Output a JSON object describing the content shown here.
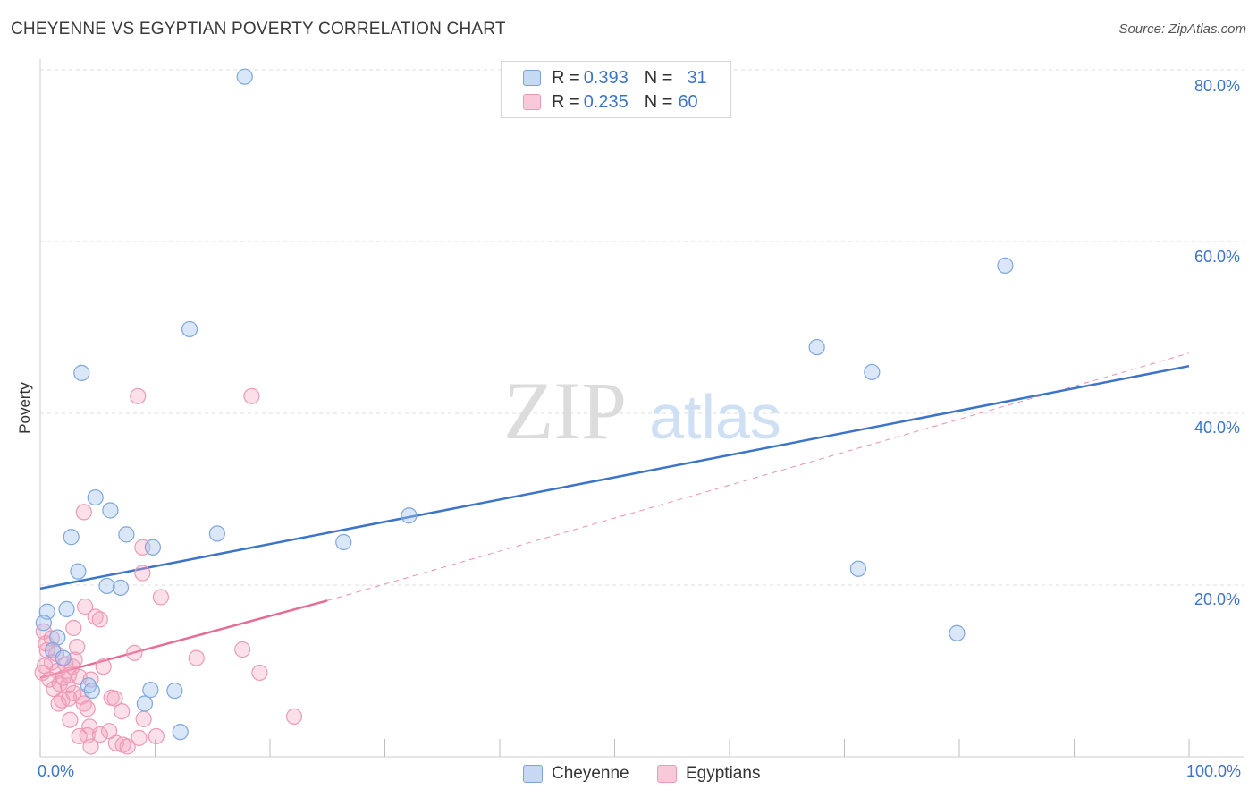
{
  "title": "CHEYENNE VS EGYPTIAN POVERTY CORRELATION CHART",
  "source": "Source: ZipAtlas.com",
  "watermark": {
    "zip": "ZIP",
    "atlas": "atlas"
  },
  "legend": {
    "r_label": "R =",
    "n_label": "N =",
    "rows": [
      {
        "r": "0.393",
        "n": "31"
      },
      {
        "r": "0.235",
        "n": "60"
      }
    ]
  },
  "chart_data": {
    "type": "scatter",
    "title": "CHEYENNE VS EGYPTIAN POVERTY CORRELATION CHART",
    "xlabel": "",
    "ylabel": "Poverty",
    "xlim": [
      0,
      100
    ],
    "ylim": [
      0,
      80
    ],
    "x_tick_labels": {
      "min": "0.0%",
      "max": "100.0%"
    },
    "y_ticks": [
      20,
      40,
      60,
      80
    ],
    "y_tick_labels": [
      "20.0%",
      "40.0%",
      "60.0%",
      "80.0%"
    ],
    "grid": "horizontal dashed",
    "legend_placement": "bottom-center",
    "colors": {
      "cheyenne": "#3b74c9",
      "egyptians": "#e56d95"
    },
    "series": [
      {
        "name": "Cheyenne",
        "r": 0.393,
        "n": 31,
        "trend": {
          "x0": 0,
          "y0": 19.6,
          "x1": 100,
          "y1": 45.5
        },
        "points": [
          [
            17.8,
            79.2
          ],
          [
            84.0,
            57.2
          ],
          [
            13.0,
            49.8
          ],
          [
            3.6,
            44.7
          ],
          [
            67.6,
            47.7
          ],
          [
            72.4,
            44.8
          ],
          [
            4.8,
            30.2
          ],
          [
            6.1,
            28.7
          ],
          [
            32.1,
            28.1
          ],
          [
            2.7,
            25.6
          ],
          [
            7.5,
            25.9
          ],
          [
            15.4,
            26.0
          ],
          [
            26.4,
            25.0
          ],
          [
            9.8,
            24.4
          ],
          [
            3.3,
            21.6
          ],
          [
            71.2,
            21.9
          ],
          [
            5.8,
            19.9
          ],
          [
            7.0,
            19.7
          ],
          [
            0.6,
            16.9
          ],
          [
            2.3,
            17.2
          ],
          [
            0.3,
            15.6
          ],
          [
            1.5,
            13.9
          ],
          [
            79.8,
            14.4
          ],
          [
            1.1,
            12.4
          ],
          [
            2.0,
            11.5
          ],
          [
            4.2,
            8.3
          ],
          [
            4.5,
            7.7
          ],
          [
            9.6,
            7.8
          ],
          [
            11.7,
            7.7
          ],
          [
            9.1,
            6.2
          ],
          [
            12.2,
            2.9
          ]
        ]
      },
      {
        "name": "Egyptians",
        "r": 0.235,
        "n": 60,
        "trend": {
          "x0": 0,
          "y0": 9.2,
          "x1": 25,
          "y1": 18.2
        },
        "trend_extension": {
          "x0": 25,
          "y0": 18.2,
          "x1": 100,
          "y1": 47.0
        },
        "points": [
          [
            8.5,
            42.0
          ],
          [
            18.4,
            42.0
          ],
          [
            3.8,
            28.5
          ],
          [
            8.9,
            24.4
          ],
          [
            8.9,
            21.4
          ],
          [
            10.5,
            18.6
          ],
          [
            3.9,
            17.5
          ],
          [
            4.8,
            16.3
          ],
          [
            5.2,
            16.0
          ],
          [
            0.3,
            14.6
          ],
          [
            2.9,
            15.0
          ],
          [
            0.5,
            13.2
          ],
          [
            0.6,
            12.4
          ],
          [
            3.2,
            12.8
          ],
          [
            1.4,
            12.0
          ],
          [
            3.0,
            11.3
          ],
          [
            8.2,
            12.1
          ],
          [
            13.6,
            11.5
          ],
          [
            17.6,
            12.5
          ],
          [
            1.0,
            11.0
          ],
          [
            2.2,
            10.8
          ],
          [
            2.8,
            10.5
          ],
          [
            0.2,
            9.8
          ],
          [
            1.5,
            10.0
          ],
          [
            2.5,
            9.5
          ],
          [
            3.4,
            9.3
          ],
          [
            5.5,
            10.5
          ],
          [
            19.1,
            9.8
          ],
          [
            0.8,
            9.0
          ],
          [
            1.7,
            8.5
          ],
          [
            2.4,
            8.3
          ],
          [
            4.4,
            9.0
          ],
          [
            1.2,
            7.9
          ],
          [
            2.9,
            7.4
          ],
          [
            3.6,
            7.0
          ],
          [
            1.9,
            6.6
          ],
          [
            2.5,
            6.8
          ],
          [
            6.2,
            6.9
          ],
          [
            6.5,
            6.8
          ],
          [
            1.6,
            6.2
          ],
          [
            3.8,
            6.2
          ],
          [
            4.1,
            5.6
          ],
          [
            7.1,
            5.3
          ],
          [
            2.6,
            4.3
          ],
          [
            9.0,
            4.4
          ],
          [
            22.1,
            4.7
          ],
          [
            4.3,
            3.5
          ],
          [
            6.0,
            3.0
          ],
          [
            4.1,
            2.5
          ],
          [
            3.4,
            2.4
          ],
          [
            5.2,
            2.6
          ],
          [
            8.6,
            2.2
          ],
          [
            10.1,
            2.4
          ],
          [
            6.6,
            1.6
          ],
          [
            7.2,
            1.4
          ],
          [
            4.4,
            1.2
          ],
          [
            7.6,
            1.2
          ],
          [
            1.0,
            13.8
          ],
          [
            2.0,
            9.2
          ],
          [
            0.4,
            10.6
          ]
        ]
      }
    ]
  }
}
